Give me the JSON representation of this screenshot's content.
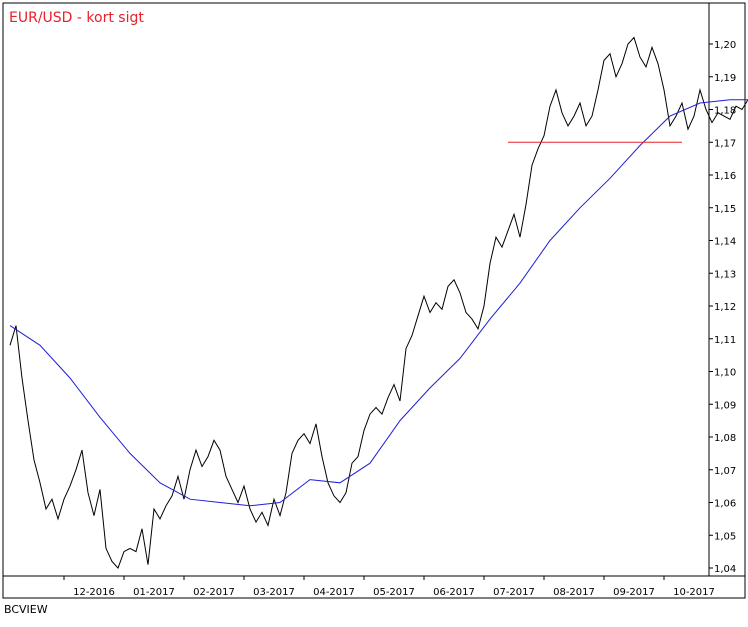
{
  "chart_data": {
    "type": "line",
    "title": "EUR/USD - kort sigt",
    "colors": {
      "title": "#e8202a",
      "price": "#000000",
      "average": "#1f1fd6",
      "level": "#e8202a",
      "frame": "#000000"
    },
    "ylim": [
      1.036,
      1.206
    ],
    "y_ticks": [
      "1,04",
      "1,05",
      "1,06",
      "1,07",
      "1,08",
      "1,09",
      "1,10",
      "1,11",
      "1,12",
      "1,13",
      "1,14",
      "1,15",
      "1,16",
      "1,17",
      "1,18",
      "1,19",
      "1,20"
    ],
    "x_ticks": [
      "12-2016",
      "01-2017",
      "02-2017",
      "03-2017",
      "04-2017",
      "05-2017",
      "06-2017",
      "07-2017",
      "08-2017",
      "09-2017",
      "10-2017"
    ],
    "y_axis_side": "right",
    "grid": false,
    "level": {
      "value": 1.17,
      "x_start": 8.3,
      "x_end": 11.2
    },
    "series": [
      {
        "style": "price",
        "x": [
          0.0,
          0.1,
          0.2,
          0.3,
          0.4,
          0.5,
          0.6,
          0.7,
          0.8,
          0.9,
          1.0,
          1.1,
          1.2,
          1.3,
          1.4,
          1.5,
          1.6,
          1.7,
          1.8,
          1.9,
          2.0,
          2.1,
          2.2,
          2.3,
          2.4,
          2.5,
          2.6,
          2.7,
          2.8,
          2.9,
          3.0,
          3.1,
          3.2,
          3.3,
          3.4,
          3.5,
          3.6,
          3.7,
          3.8,
          3.9,
          4.0,
          4.1,
          4.2,
          4.3,
          4.4,
          4.5,
          4.6,
          4.7,
          4.8,
          4.9,
          5.0,
          5.1,
          5.2,
          5.3,
          5.4,
          5.5,
          5.6,
          5.7,
          5.8,
          5.9,
          6.0,
          6.1,
          6.2,
          6.3,
          6.4,
          6.5,
          6.6,
          6.7,
          6.8,
          6.9,
          7.0,
          7.1,
          7.2,
          7.3,
          7.4,
          7.5,
          7.6,
          7.7,
          7.8,
          7.9,
          8.0,
          8.1,
          8.2,
          8.3,
          8.4,
          8.5,
          8.6,
          8.7,
          8.8,
          8.9,
          9.0,
          9.1,
          9.2,
          9.3,
          9.4,
          9.5,
          9.6,
          9.7,
          9.8,
          9.9,
          10.0,
          10.1,
          10.2,
          10.3,
          10.4,
          10.5,
          10.6,
          10.7,
          10.8,
          10.9,
          11.0,
          11.1,
          11.2,
          11.3,
          11.4,
          11.5,
          11.6,
          11.7,
          11.8,
          11.9,
          12.0,
          12.1,
          12.2,
          12.3
        ],
        "values": [
          1.108,
          1.114,
          1.098,
          1.085,
          1.073,
          1.066,
          1.058,
          1.061,
          1.055,
          1.061,
          1.065,
          1.07,
          1.076,
          1.063,
          1.056,
          1.064,
          1.046,
          1.042,
          1.04,
          1.045,
          1.046,
          1.045,
          1.052,
          1.041,
          1.058,
          1.055,
          1.059,
          1.062,
          1.068,
          1.061,
          1.07,
          1.076,
          1.071,
          1.074,
          1.079,
          1.076,
          1.068,
          1.064,
          1.06,
          1.065,
          1.058,
          1.054,
          1.057,
          1.053,
          1.061,
          1.056,
          1.063,
          1.075,
          1.079,
          1.081,
          1.078,
          1.084,
          1.074,
          1.066,
          1.062,
          1.06,
          1.063,
          1.072,
          1.074,
          1.082,
          1.087,
          1.089,
          1.087,
          1.092,
          1.096,
          1.091,
          1.107,
          1.111,
          1.117,
          1.123,
          1.118,
          1.121,
          1.119,
          1.126,
          1.128,
          1.124,
          1.118,
          1.116,
          1.113,
          1.12,
          1.133,
          1.141,
          1.138,
          1.143,
          1.148,
          1.141,
          1.151,
          1.163,
          1.168,
          1.172,
          1.181,
          1.186,
          1.179,
          1.175,
          1.178,
          1.182,
          1.175,
          1.178,
          1.186,
          1.195,
          1.197,
          1.19,
          1.194,
          1.2,
          1.202,
          1.196,
          1.193,
          1.199,
          1.194,
          1.186,
          1.175,
          1.178,
          1.182,
          1.174,
          1.178,
          1.186,
          1.18,
          1.176,
          1.179,
          1.178,
          1.177,
          1.181,
          1.18,
          1.183
        ]
      },
      {
        "style": "average",
        "x": [
          0.0,
          0.5,
          1.0,
          1.5,
          2.0,
          2.5,
          3.0,
          3.5,
          4.0,
          4.5,
          5.0,
          5.5,
          6.0,
          6.5,
          7.0,
          7.5,
          8.0,
          8.5,
          9.0,
          9.5,
          10.0,
          10.5,
          11.0,
          11.5,
          12.0,
          12.3
        ],
        "values": [
          1.114,
          1.108,
          1.098,
          1.086,
          1.075,
          1.066,
          1.061,
          1.06,
          1.059,
          1.06,
          1.067,
          1.066,
          1.072,
          1.085,
          1.095,
          1.104,
          1.116,
          1.127,
          1.14,
          1.15,
          1.159,
          1.169,
          1.178,
          1.182,
          1.183,
          1.183
        ]
      }
    ]
  },
  "footer_text": "BCVIEW"
}
